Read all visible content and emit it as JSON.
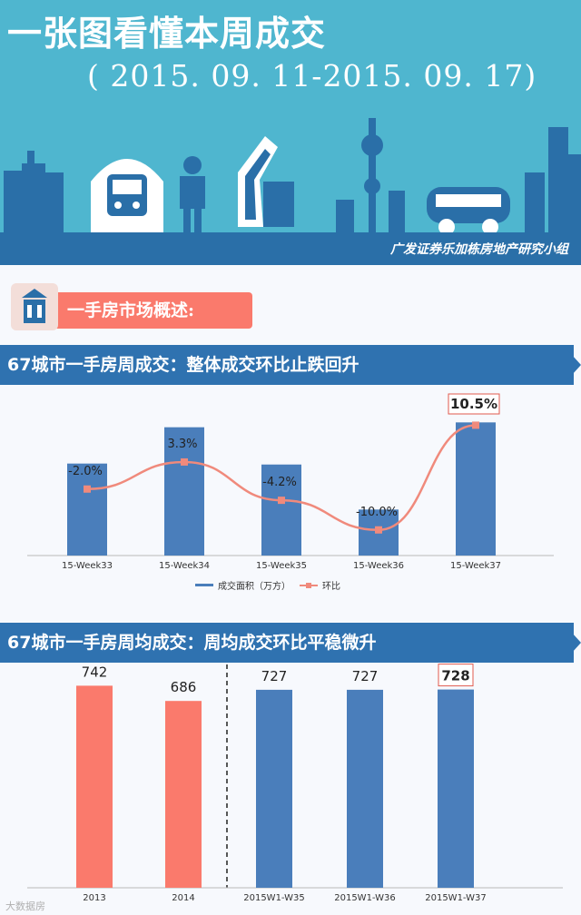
{
  "header": {
    "title": "一张图看懂本周成交",
    "date_range": "( 2015. 09. 11-2015. 09. 17)",
    "org": "广发证券乐加栋房地产研究小组"
  },
  "section": {
    "label": "一手房市场概述:"
  },
  "colors": {
    "bar": "#4a7ebb",
    "line": "#f08a7c",
    "hist_bar": "#fa7a6c",
    "banner": "#2f72b0",
    "sky": "#4fb6cf"
  },
  "chart_data": [
    {
      "type": "bar",
      "title": "67城市一手房周成交：整体成交环比止跌回升",
      "categories": [
        "15-Week33",
        "15-Week34",
        "15-Week35",
        "15-Week36",
        "15-Week37"
      ],
      "series": [
        {
          "name": "成交面积（万方）",
          "type": "bar",
          "values": [
            190,
            265,
            188,
            95,
            275
          ]
        },
        {
          "name": "环比",
          "type": "line",
          "values": [
            -2.0,
            3.3,
            -4.2,
            -10.0,
            10.5
          ],
          "labels": [
            "-2.0%",
            "3.3%",
            "-4.2%",
            "-10.0%",
            "10.5%"
          ]
        }
      ],
      "highlight_label": "10.5%",
      "legend_position": "bottom"
    },
    {
      "type": "bar",
      "title": "67城市一手房周均成交：周均成交环比平稳微升",
      "categories": [
        "2013",
        "2014",
        "2015W1-W35",
        "2015W1-W36",
        "2015W1-W37"
      ],
      "values": [
        742,
        686,
        727,
        727,
        728
      ],
      "labels": [
        "742",
        "686",
        "727",
        "727",
        "728"
      ],
      "highlight_label": "728"
    }
  ],
  "watermark": "大数据房"
}
